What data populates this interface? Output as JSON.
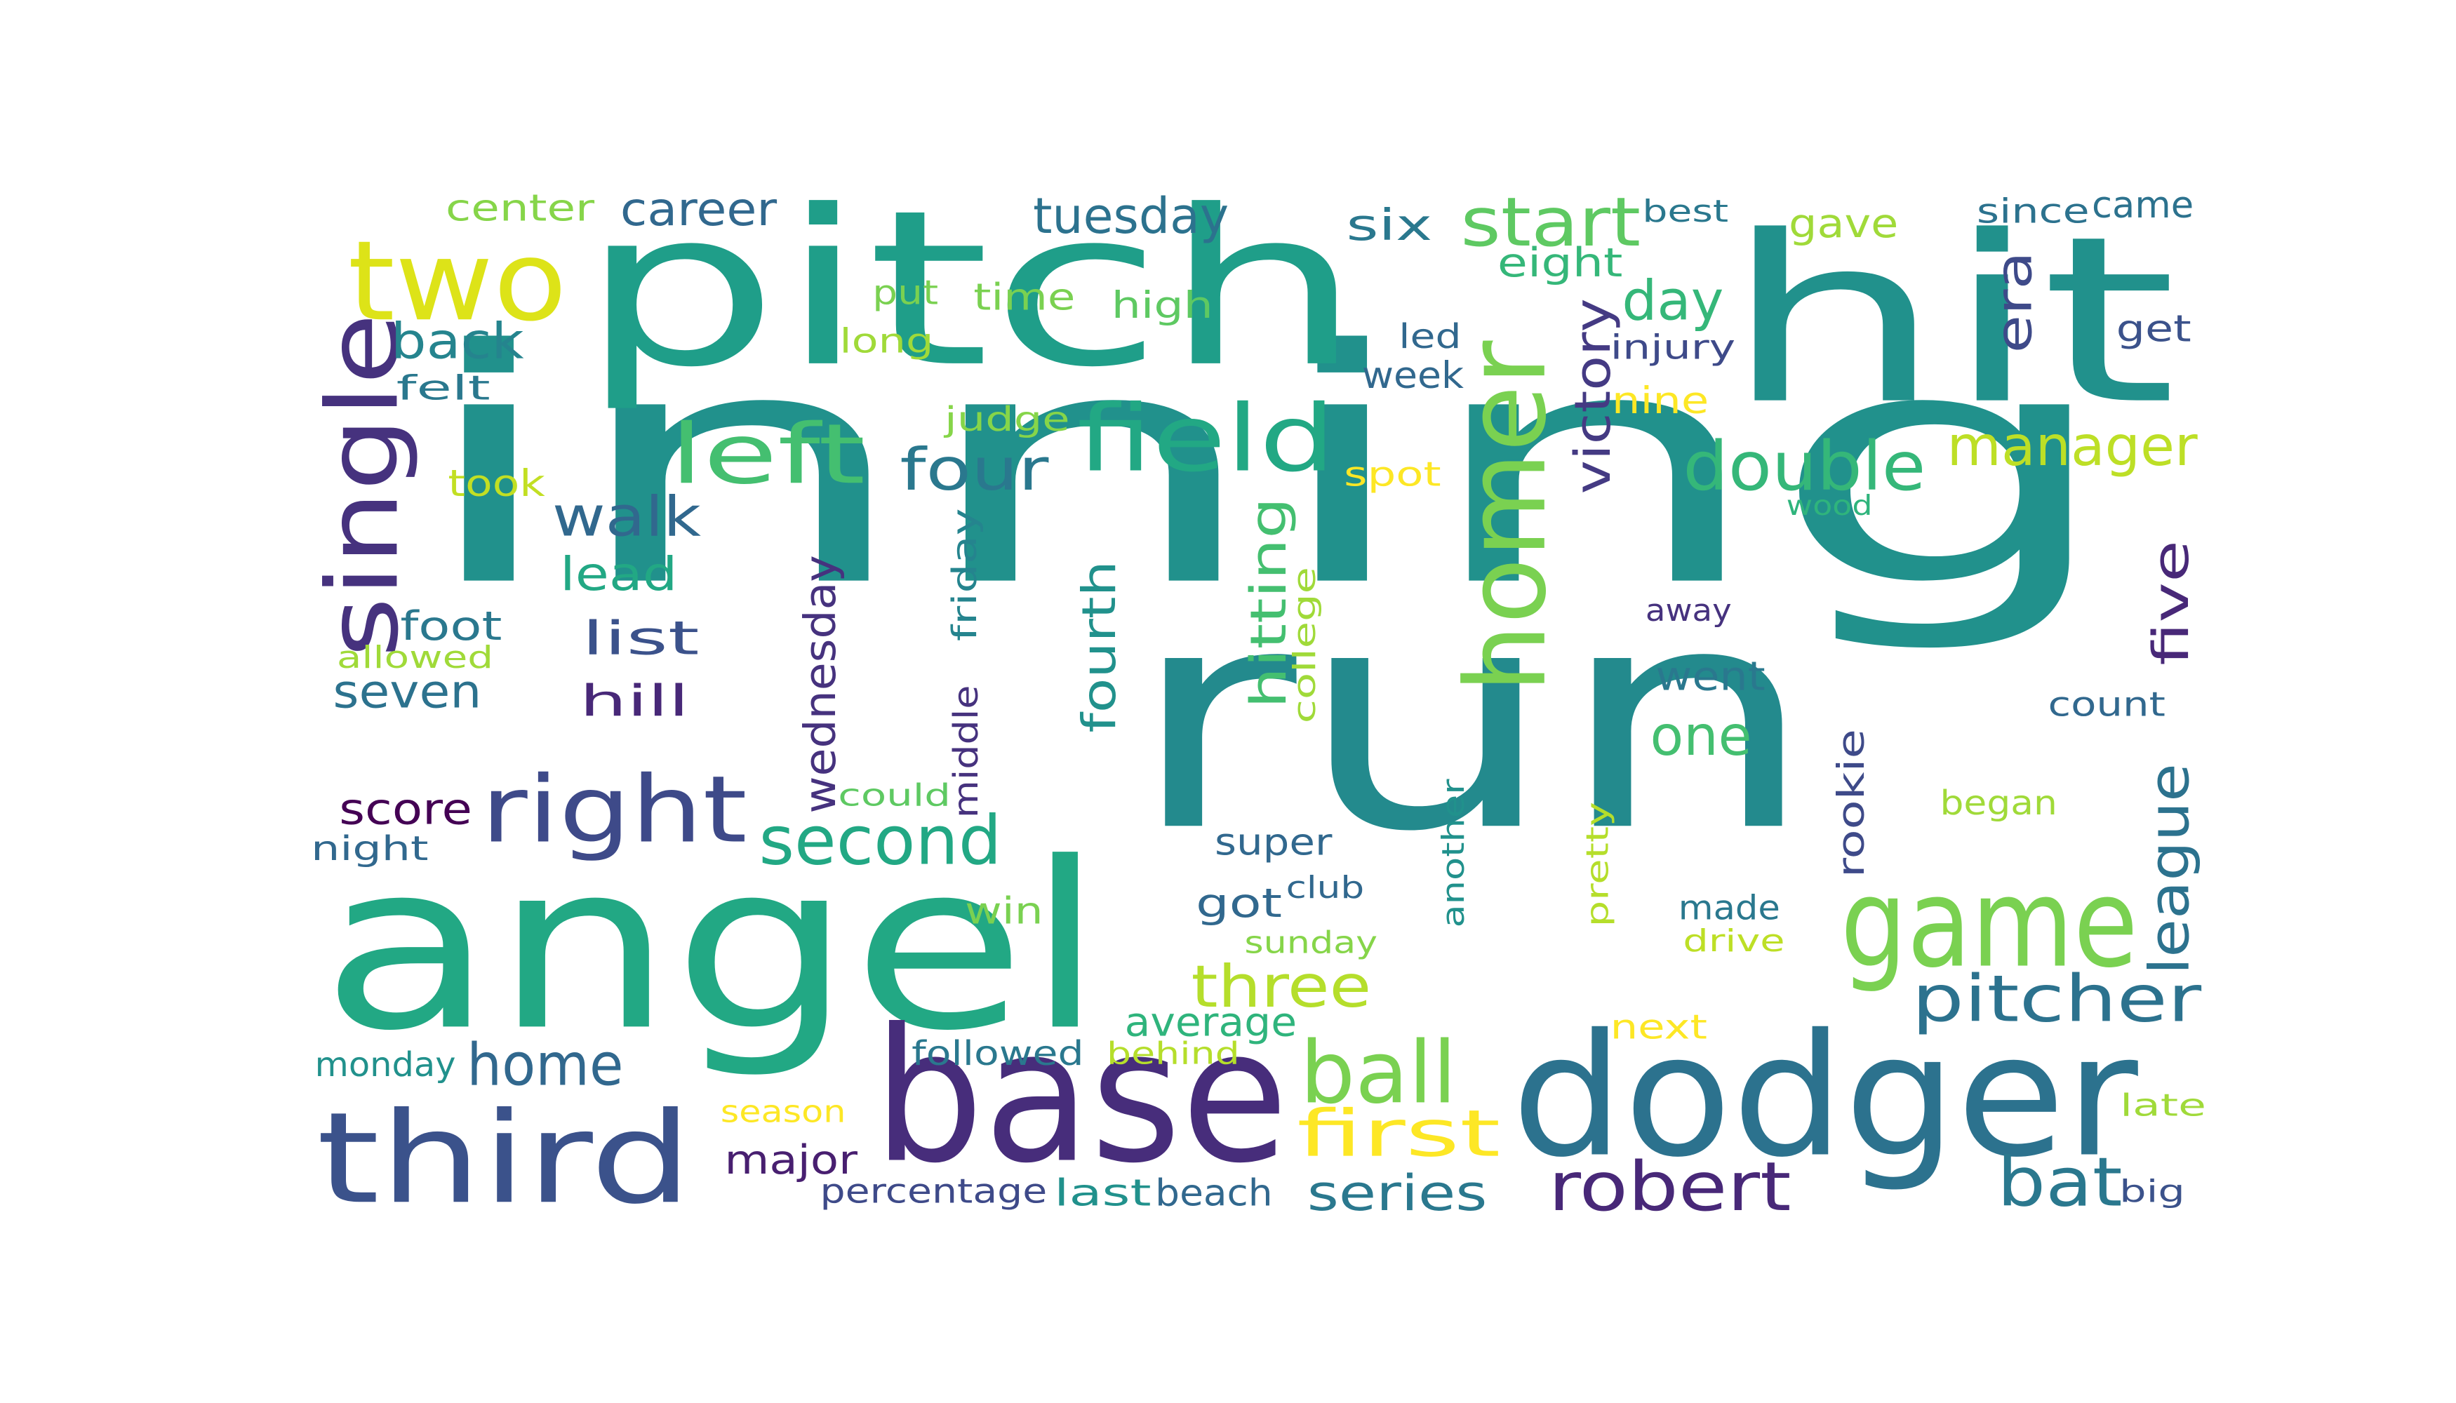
{
  "words": [
    {
      "text": "inning",
      "color": "#21918c"
    },
    {
      "text": "run",
      "color": "#238a8d"
    },
    {
      "text": "angel",
      "color": "#22a884"
    },
    {
      "text": "pitch",
      "color": "#1f9e89"
    },
    {
      "text": "hit",
      "color": "#21918c"
    },
    {
      "text": "base",
      "color": "#472d7b"
    },
    {
      "text": "dodger",
      "color": "#2c728e"
    },
    {
      "text": "third",
      "color": "#3b528b"
    },
    {
      "text": "two",
      "color": "#dde318"
    },
    {
      "text": "homer",
      "color": "#7ad151"
    },
    {
      "text": "game",
      "color": "#7ad151"
    },
    {
      "text": "single",
      "color": "#46327e"
    },
    {
      "text": "right",
      "color": "#3e4a89"
    },
    {
      "text": "field",
      "color": "#22a884"
    },
    {
      "text": "left",
      "color": "#44bf70"
    },
    {
      "text": "ball",
      "color": "#7ad151"
    },
    {
      "text": "start",
      "color": "#5ec962"
    },
    {
      "text": "second",
      "color": "#22a884"
    },
    {
      "text": "double",
      "color": "#35b779"
    },
    {
      "text": "pitcher",
      "color": "#2c728e"
    },
    {
      "text": "robert",
      "color": "#482878"
    },
    {
      "text": "bat",
      "color": "#2a788e"
    },
    {
      "text": "first",
      "color": "#fde725"
    },
    {
      "text": "home",
      "color": "#31688e"
    },
    {
      "text": "three",
      "color": "#b5de2b"
    },
    {
      "text": "four",
      "color": "#2a788e"
    },
    {
      "text": "manager",
      "color": "#bddf26"
    },
    {
      "text": "league",
      "color": "#2c728e"
    },
    {
      "text": "walk",
      "color": "#31688e"
    },
    {
      "text": "tuesday",
      "color": "#2c728e"
    },
    {
      "text": "day",
      "color": "#35b779"
    },
    {
      "text": "era",
      "color": "#3e4a89"
    },
    {
      "text": "series",
      "color": "#2a788e"
    },
    {
      "text": "one",
      "color": "#44bf70"
    },
    {
      "text": "back",
      "color": "#25848e"
    },
    {
      "text": "victory",
      "color": "#443a83"
    },
    {
      "text": "five",
      "color": "#482878"
    },
    {
      "text": "seven",
      "color": "#2c728e"
    },
    {
      "text": "career",
      "color": "#31688e"
    },
    {
      "text": "list",
      "color": "#3b528b"
    },
    {
      "text": "hitting",
      "color": "#44bf70"
    },
    {
      "text": "fourth",
      "color": "#21918c"
    },
    {
      "text": "lead",
      "color": "#22a884"
    },
    {
      "text": "score",
      "color": "#440154"
    },
    {
      "text": "pitcher_",
      "color": "#2c728e"
    },
    {
      "text": "hill",
      "color": "#482878"
    },
    {
      "text": "wednesday",
      "color": "#46327e"
    },
    {
      "text": "average",
      "color": "#2fb47c"
    },
    {
      "text": "six",
      "color": "#2a788e"
    },
    {
      "text": "got",
      "color": "#31688e"
    },
    {
      "text": "went",
      "color": "#2a788e"
    },
    {
      "text": "major",
      "color": "#481f70"
    },
    {
      "text": "foot",
      "color": "#2a788e"
    },
    {
      "text": "gave",
      "color": "#a0da39"
    },
    {
      "text": "eight",
      "color": "#35b779"
    },
    {
      "text": "week",
      "color": "#31688e"
    },
    {
      "text": "high",
      "color": "#5ec962"
    },
    {
      "text": "time",
      "color": "#7ad151"
    },
    {
      "text": "center",
      "color": "#86d549"
    },
    {
      "text": "rookie",
      "color": "#3e4a89"
    },
    {
      "text": "came",
      "color": "#2c728e"
    },
    {
      "text": "win",
      "color": "#7ad151"
    },
    {
      "text": "super",
      "color": "#31688e"
    },
    {
      "text": "get",
      "color": "#3b528b"
    },
    {
      "text": "monday",
      "color": "#21918c"
    },
    {
      "text": "made",
      "color": "#2a788e"
    },
    {
      "text": "count",
      "color": "#31688e"
    },
    {
      "text": "followed",
      "color": "#2a788e"
    },
    {
      "text": "began",
      "color": "#a0da39"
    },
    {
      "text": "since",
      "color": "#2c728e"
    },
    {
      "text": "percentage",
      "color": "#3e4a89"
    },
    {
      "text": "last",
      "color": "#21918c"
    },
    {
      "text": "beach",
      "color": "#31688e"
    },
    {
      "text": "judge",
      "color": "#86d549"
    },
    {
      "text": "friday",
      "color": "#25848e"
    },
    {
      "text": "middle",
      "color": "#46327e"
    },
    {
      "text": "nine",
      "color": "#fde725"
    },
    {
      "text": "took",
      "color": "#c2df23"
    },
    {
      "text": "night",
      "color": "#31688e"
    },
    {
      "text": "injury",
      "color": "#3e4a89"
    },
    {
      "text": "led",
      "color": "#31688e"
    },
    {
      "text": "felt",
      "color": "#2a788e"
    },
    {
      "text": "put",
      "color": "#7ad151"
    },
    {
      "text": "long",
      "color": "#a0da39"
    },
    {
      "text": "next",
      "color": "#fde725"
    },
    {
      "text": "spot",
      "color": "#fde725"
    },
    {
      "text": "away",
      "color": "#46327e"
    },
    {
      "text": "allowed",
      "color": "#a0da39"
    },
    {
      "text": "could",
      "color": "#5ec962"
    },
    {
      "text": "college",
      "color": "#a0da39"
    },
    {
      "text": "another",
      "color": "#21918c"
    },
    {
      "text": "pretty",
      "color": "#b5de2b"
    },
    {
      "text": "club",
      "color": "#31688e"
    },
    {
      "text": "sunday",
      "color": "#86d549"
    },
    {
      "text": "behind",
      "color": "#b5de2b"
    },
    {
      "text": "drive",
      "color": "#bddf26"
    },
    {
      "text": "wood",
      "color": "#2fb47c"
    },
    {
      "text": "best",
      "color": "#2a788e"
    },
    {
      "text": "season",
      "color": "#fde725"
    },
    {
      "text": "late",
      "color": "#a0da39"
    },
    {
      "text": "big",
      "color": "#3b528b"
    }
  ]
}
